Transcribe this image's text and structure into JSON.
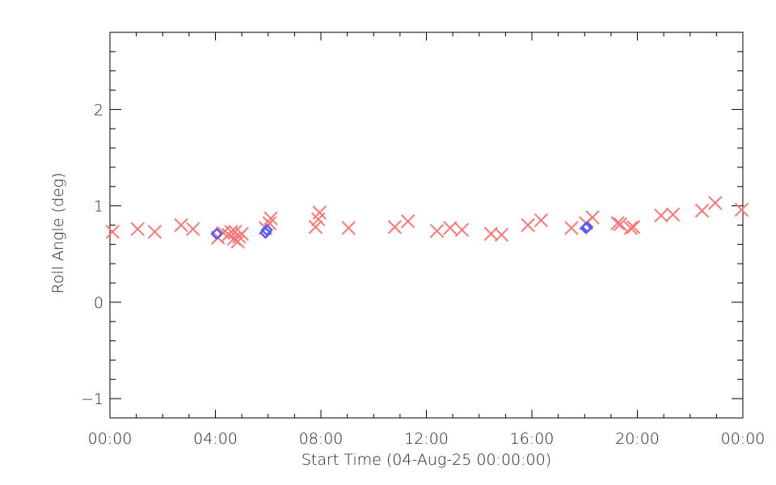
{
  "chart_data": {
    "type": "scatter",
    "title": "",
    "xlabel": "Start Time (04-Aug-25 00:00:00)",
    "ylabel": "Roll Angle (deg)",
    "x_unit": "hours",
    "xlim": [
      0,
      24
    ],
    "ylim": [
      -1.2,
      2.8
    ],
    "xticks": [
      0,
      4,
      8,
      12,
      16,
      20,
      24
    ],
    "xtick_labels": [
      "00:00",
      "04:00",
      "08:00",
      "12:00",
      "16:00",
      "20:00",
      "00:00"
    ],
    "yticks": [
      -1,
      0,
      1,
      2
    ],
    "ytick_labels": [
      "−1",
      "0",
      "1",
      "2"
    ],
    "grid": false,
    "series": [
      {
        "marker": "x",
        "color": "#f87878",
        "points": [
          [
            0.1,
            0.73
          ],
          [
            1.05,
            0.76
          ],
          [
            1.7,
            0.73
          ],
          [
            2.7,
            0.8
          ],
          [
            3.15,
            0.76
          ],
          [
            4.1,
            0.67
          ],
          [
            4.3,
            0.72
          ],
          [
            4.5,
            0.7
          ],
          [
            4.6,
            0.73
          ],
          [
            4.7,
            0.66
          ],
          [
            4.75,
            0.73
          ],
          [
            4.85,
            0.63
          ],
          [
            4.9,
            0.68
          ],
          [
            5.0,
            0.71
          ],
          [
            5.9,
            0.77
          ],
          [
            6.05,
            0.82
          ],
          [
            6.1,
            0.87
          ],
          [
            7.8,
            0.78
          ],
          [
            7.9,
            0.86
          ],
          [
            7.95,
            0.93
          ],
          [
            9.05,
            0.77
          ],
          [
            10.8,
            0.78
          ],
          [
            11.3,
            0.84
          ],
          [
            12.4,
            0.74
          ],
          [
            12.9,
            0.77
          ],
          [
            13.35,
            0.75
          ],
          [
            14.45,
            0.71
          ],
          [
            14.85,
            0.7
          ],
          [
            15.85,
            0.8
          ],
          [
            16.35,
            0.85
          ],
          [
            17.5,
            0.77
          ],
          [
            18.05,
            0.82
          ],
          [
            18.3,
            0.88
          ],
          [
            19.25,
            0.82
          ],
          [
            19.35,
            0.81
          ],
          [
            19.75,
            0.77
          ],
          [
            19.85,
            0.78
          ],
          [
            20.9,
            0.9
          ],
          [
            21.35,
            0.91
          ],
          [
            22.45,
            0.95
          ],
          [
            22.95,
            1.03
          ],
          [
            23.95,
            0.96
          ]
        ]
      },
      {
        "marker": "diamond",
        "color": "#5a5aee",
        "points": [
          [
            4.05,
            0.71
          ],
          [
            5.9,
            0.72
          ],
          [
            5.95,
            0.75
          ],
          [
            18.05,
            0.77
          ],
          [
            18.1,
            0.78
          ]
        ]
      }
    ]
  }
}
